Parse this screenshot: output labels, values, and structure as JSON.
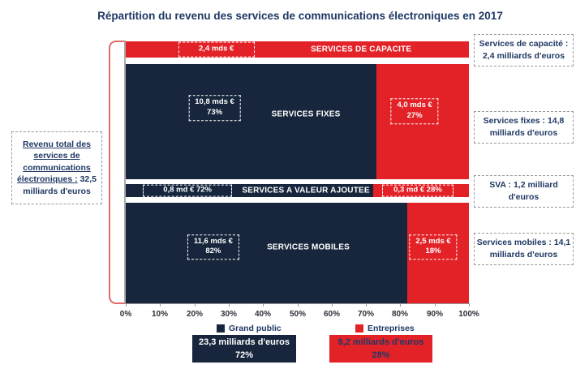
{
  "title": "Répartition du revenu des services de communications électroniques en 2017",
  "colors": {
    "grand_public_navy": "#17263C",
    "entreprises_red": "#E32227",
    "text_blue": "#1F3864",
    "bracket_red": "#E36A6A",
    "axis_gray": "#9A9A9A"
  },
  "left_note": {
    "underlined": "Revenu total des services de communications électroniques :",
    "plain": "32,5 milliards d'euros"
  },
  "bars": {
    "capacite": {
      "label": "SERVICES DE CAPACITE",
      "entreprises_value": "2,4 mds €"
    },
    "fixes": {
      "label": "SERVICES FIXES",
      "public_value": "10,8 mds €",
      "public_pct": "73%",
      "entreprises_value": "4,0 mds €",
      "entreprises_pct": "27%"
    },
    "sva": {
      "label": "SERVICES A VALEUR AJOUTEE",
      "public_value": "0,8 md €  72%",
      "entreprises_value": "0,3 md € 28%"
    },
    "mobiles": {
      "label": "SERVICES MOBILES",
      "public_value": "11,6 mds €",
      "public_pct": "82%",
      "entreprises_value": "2,5 mds €",
      "entreprises_pct": "18%"
    }
  },
  "annotations_right": {
    "capacite": "Services de capacité : 2,4 milliards d'euros",
    "fixes": "Services fixes : 14,8 milliards d'euros",
    "sva": "SVA : 1,2 milliard d'euros",
    "mobiles": "Services mobiles : 14,1 milliards d'euros"
  },
  "axis": {
    "ticks": [
      "0%",
      "10%",
      "20%",
      "30%",
      "40%",
      "50%",
      "60%",
      "70%",
      "80%",
      "90%",
      "100%"
    ]
  },
  "legend": {
    "grand_public": "Grand public",
    "entreprises": "Entreprises"
  },
  "totals": {
    "grand_public": {
      "value": "23,3 milliards d'euros",
      "pct": "72%"
    },
    "entreprises": {
      "value": "9,2 milliards d'euros",
      "pct": "28%"
    }
  },
  "chart_data": {
    "type": "bar",
    "subtype": "horizontal-stacked-100pct",
    "title": "Répartition du revenu des services de communications électroniques en 2017",
    "categories": [
      "Services de capacité",
      "Services fixes",
      "Services à valeur ajoutée",
      "Services mobiles"
    ],
    "series": [
      {
        "name": "Grand public",
        "color": "#17263C",
        "values_mds_eur": [
          0,
          10.8,
          0.8,
          11.6
        ],
        "pct": [
          0,
          73,
          72,
          82
        ]
      },
      {
        "name": "Entreprises",
        "color": "#E32227",
        "values_mds_eur": [
          2.4,
          4.0,
          0.3,
          2.5
        ],
        "pct": [
          100,
          27,
          28,
          18
        ]
      }
    ],
    "category_totals_mds_eur": [
      2.4,
      14.8,
      1.2,
      14.1
    ],
    "grand_total_mds_eur": 32.5,
    "series_totals": [
      {
        "name": "Grand public",
        "value_mds_eur": 23.3,
        "pct": 72
      },
      {
        "name": "Entreprises",
        "value_mds_eur": 9.2,
        "pct": 28
      }
    ],
    "x_axis": {
      "range_pct": [
        0,
        100
      ],
      "tick_step_pct": 10,
      "tick_labels": [
        "0%",
        "10%",
        "20%",
        "30%",
        "40%",
        "50%",
        "60%",
        "70%",
        "80%",
        "90%",
        "100%"
      ]
    },
    "legend_position": "bottom",
    "grid": false
  }
}
